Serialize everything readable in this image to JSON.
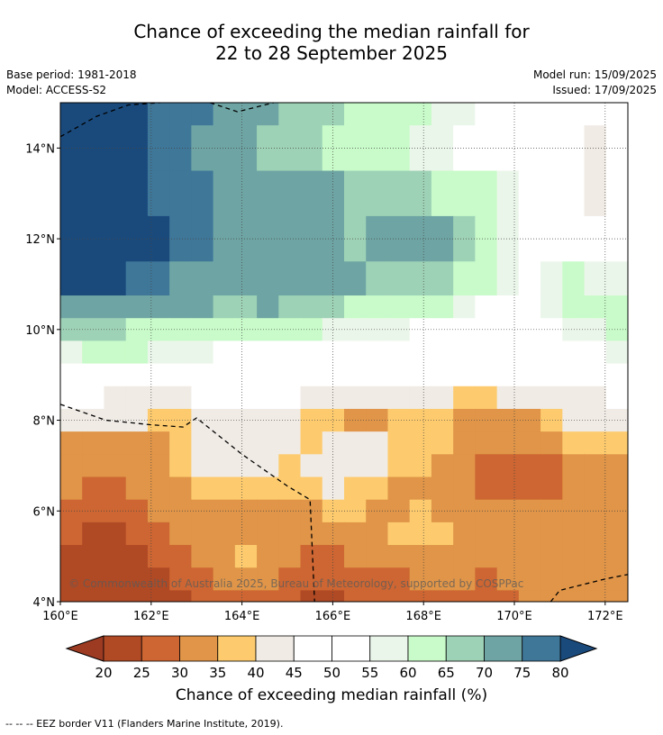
{
  "header": {
    "title_line1": "Chance of exceeding the median rainfall for",
    "title_line2": "22 to 28 September 2025",
    "base_period": "Base period: 1981-2018",
    "model": "Model: ACCESS-S2",
    "model_run": "Model run: 15/09/2025",
    "issued": "Issued: 17/09/2025"
  },
  "copyright": "© Commonwealth of Australia 2025, Bureau of Meteorology, supported by COSPPac",
  "footer_note": "--  --  -- EEZ border V11 (Flanders Marine Institute, 2019).",
  "chart_data": {
    "type": "heatmap",
    "x_ticks": [
      "160°E",
      "162°E",
      "164°E",
      "166°E",
      "168°E",
      "170°E",
      "172°E"
    ],
    "y_ticks": [
      "14°N",
      "12°N",
      "10°N",
      "8°N",
      "6°N",
      "4°N"
    ],
    "xlim": [
      160,
      172.5
    ],
    "ylim": [
      4,
      15
    ],
    "grid": true,
    "colorbar": {
      "label": "Chance of exceeding median rainfall (%)",
      "ticks": [
        "20",
        "25",
        "30",
        "35",
        "40",
        "45",
        "50",
        "55",
        "60",
        "65",
        "70",
        "75",
        "80"
      ],
      "under_color": "#9c3a22",
      "over_color": "#1a4a7c",
      "colors": [
        "#b04a25",
        "#cd6632",
        "#e09548",
        "#fdcb6e",
        "#f0ebe5",
        "#ffffff",
        "#ffffff",
        "#ebf6ea",
        "#c8fbc9",
        "#9ed2b6",
        "#6ea5a4",
        "#3f7799"
      ]
    },
    "bands": [
      {
        "lat": 15.0,
        "values": [
          80,
          80,
          80,
          80,
          78,
          78,
          75,
          72,
          70,
          70,
          68,
          68,
          66,
          64,
          62,
          62,
          60,
          58,
          56,
          54,
          52,
          52,
          50,
          50,
          48,
          48
        ]
      },
      {
        "lat": 14.0,
        "values": [
          80,
          80,
          80,
          80,
          78,
          76,
          74,
          72,
          70,
          68,
          66,
          66,
          64,
          62,
          60,
          60,
          58,
          56,
          54,
          52,
          50,
          50,
          48,
          46,
          40,
          48
        ]
      },
      {
        "lat": 13.0,
        "values": [
          80,
          80,
          80,
          80,
          78,
          76,
          76,
          74,
          72,
          72,
          72,
          70,
          70,
          68,
          66,
          66,
          66,
          64,
          62,
          60,
          56,
          52,
          50,
          46,
          44,
          50
        ]
      },
      {
        "lat": 12.0,
        "values": [
          80,
          80,
          80,
          80,
          80,
          78,
          76,
          74,
          72,
          70,
          70,
          72,
          70,
          68,
          70,
          72,
          70,
          70,
          68,
          64,
          58,
          54,
          52,
          50,
          52,
          54
        ]
      },
      {
        "lat": 11.0,
        "values": [
          80,
          80,
          80,
          78,
          76,
          74,
          74,
          72,
          72,
          72,
          70,
          70,
          70,
          70,
          68,
          68,
          66,
          66,
          64,
          60,
          56,
          54,
          56,
          60,
          58,
          56
        ]
      },
      {
        "lat": 10.5,
        "values": [
          74,
          74,
          72,
          72,
          70,
          70,
          70,
          68,
          68,
          70,
          68,
          66,
          66,
          64,
          64,
          62,
          60,
          60,
          56,
          54,
          54,
          54,
          58,
          62,
          62,
          60
        ]
      },
      {
        "lat": 10.0,
        "values": [
          66,
          66,
          66,
          64,
          64,
          64,
          62,
          62,
          62,
          60,
          60,
          60,
          58,
          58,
          56,
          56,
          54,
          54,
          52,
          52,
          52,
          52,
          54,
          56,
          58,
          60
        ]
      },
      {
        "lat": 9.5,
        "values": [
          58,
          60,
          60,
          60,
          58,
          56,
          55,
          54,
          54,
          53,
          52,
          52,
          52,
          51,
          50,
          50,
          50,
          50,
          50,
          50,
          50,
          50,
          50,
          50,
          52,
          56
        ]
      },
      {
        "lat": 9.0,
        "values": [
          52,
          52,
          52,
          51,
          50,
          50,
          50,
          50,
          50,
          50,
          50,
          50,
          50,
          49,
          48,
          47,
          46,
          45,
          45,
          46,
          47,
          48,
          49,
          50,
          50,
          52
        ]
      },
      {
        "lat": 8.5,
        "values": [
          46,
          45,
          44,
          43,
          42,
          44,
          46,
          47,
          47,
          46,
          46,
          44,
          44,
          44,
          44,
          44,
          42,
          40,
          38,
          36,
          40,
          42,
          44,
          44,
          44,
          45
        ]
      },
      {
        "lat": 8.0,
        "values": [
          40,
          40,
          40,
          40,
          38,
          38,
          42,
          44,
          42,
          42,
          40,
          38,
          36,
          34,
          34,
          36,
          38,
          36,
          34,
          32,
          32,
          34,
          38,
          40,
          42,
          42
        ]
      },
      {
        "lat": 7.5,
        "values": [
          34,
          34,
          34,
          32,
          34,
          38,
          42,
          44,
          44,
          42,
          40,
          38,
          40,
          42,
          40,
          36,
          36,
          36,
          32,
          30,
          30,
          30,
          32,
          36,
          38,
          38
        ]
      },
      {
        "lat": 7.0,
        "values": [
          32,
          30,
          30,
          32,
          34,
          38,
          40,
          42,
          42,
          40,
          38,
          40,
          44,
          44,
          40,
          36,
          36,
          34,
          30,
          28,
          26,
          26,
          28,
          30,
          32,
          34
        ]
      },
      {
        "lat": 6.5,
        "values": [
          30,
          28,
          28,
          30,
          32,
          34,
          36,
          38,
          38,
          36,
          36,
          38,
          40,
          38,
          36,
          34,
          34,
          32,
          30,
          28,
          26,
          28,
          28,
          30,
          30,
          32
        ]
      },
      {
        "lat": 6.0,
        "values": [
          28,
          26,
          26,
          28,
          30,
          32,
          32,
          34,
          34,
          32,
          32,
          34,
          36,
          36,
          34,
          34,
          36,
          34,
          32,
          30,
          30,
          30,
          30,
          30,
          30,
          30
        ]
      },
      {
        "lat": 5.5,
        "values": [
          26,
          24,
          24,
          26,
          28,
          30,
          30,
          32,
          34,
          32,
          30,
          30,
          32,
          34,
          34,
          36,
          38,
          36,
          32,
          30,
          30,
          30,
          30,
          30,
          30,
          30
        ]
      },
      {
        "lat": 5.0,
        "values": [
          24,
          22,
          22,
          24,
          26,
          28,
          30,
          32,
          36,
          34,
          30,
          28,
          28,
          30,
          30,
          32,
          34,
          32,
          30,
          30,
          30,
          30,
          30,
          30,
          30,
          30
        ]
      },
      {
        "lat": 4.5,
        "values": [
          22,
          20,
          20,
          22,
          24,
          26,
          28,
          30,
          32,
          30,
          28,
          26,
          26,
          28,
          28,
          28,
          30,
          30,
          30,
          28,
          30,
          32,
          32,
          30,
          30,
          30
        ]
      },
      {
        "lat": 4.0,
        "values": [
          20,
          20,
          20,
          22,
          24,
          24,
          26,
          28,
          28,
          26,
          26,
          24,
          24,
          26,
          26,
          26,
          28,
          28,
          28,
          28,
          28,
          30,
          30,
          30,
          30,
          30
        ]
      }
    ],
    "eez_borders": [
      [
        [
          160.0,
          14.25
        ],
        [
          160.8,
          14.7
        ],
        [
          161.5,
          14.95
        ],
        [
          162.2,
          15.0
        ]
      ],
      [
        [
          163.3,
          15.0
        ],
        [
          163.9,
          14.8
        ],
        [
          164.7,
          15.0
        ]
      ],
      [
        [
          160.0,
          8.35
        ],
        [
          161.0,
          8.0
        ],
        [
          162.0,
          7.9
        ],
        [
          162.7,
          7.85
        ],
        [
          163.0,
          8.05
        ],
        [
          164.0,
          7.25
        ],
        [
          165.0,
          6.55
        ],
        [
          165.5,
          6.25
        ],
        [
          165.6,
          4.0
        ]
      ],
      [
        [
          170.8,
          4.0
        ],
        [
          171.0,
          4.25
        ],
        [
          172.0,
          4.5
        ],
        [
          172.5,
          4.6
        ]
      ]
    ]
  }
}
